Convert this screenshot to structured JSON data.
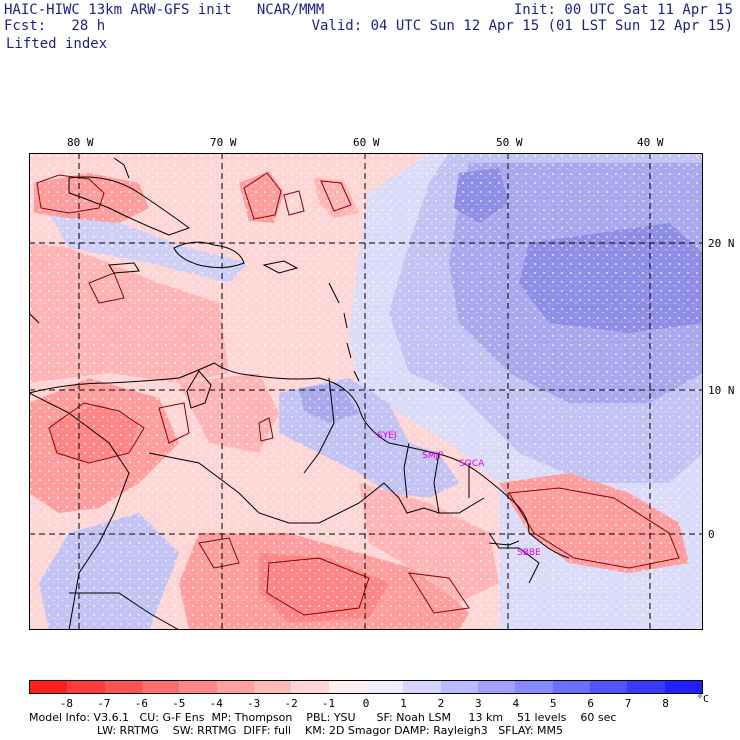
{
  "header": {
    "title": "HAIC-HIWC 13km ARW-GFS init   NCAR/MMM",
    "fcst": "Fcst:   28 h",
    "variable": "Lifted index",
    "init": "Init: 00 UTC Sat 11 Apr 15",
    "valid": "Valid: 04 UTC Sun 12 Apr 15 (01 LST Sun 12 Apr 15)"
  },
  "map": {
    "lon_labels": [
      "80 W",
      "70 W",
      "60 W",
      "50 W",
      "40 W"
    ],
    "lat_labels": [
      "20 N",
      "10 N",
      "0"
    ],
    "stations": [
      "SYEJ",
      "SMJP",
      "SOCA",
      "SBBE"
    ],
    "grid_line_color": "#000000",
    "coast_color": "#000000",
    "contour_color": "#8b0000"
  },
  "colorbar": {
    "labels": [
      "-8",
      "-7",
      "-6",
      "-5",
      "-4",
      "-3",
      "-2",
      "-1",
      "0",
      "1",
      "2",
      "3",
      "4",
      "5",
      "6",
      "7",
      "8"
    ],
    "unit": "°C",
    "colors": [
      "#ff1f1f",
      "#ff3a3a",
      "#ff5353",
      "#ff6d6d",
      "#ff8787",
      "#ffa0a0",
      "#ffbaba",
      "#ffd4d4",
      "#ffeeee",
      "#eeeeff",
      "#d4d4ff",
      "#babaff",
      "#a0a0ff",
      "#8787ff",
      "#6d6dff",
      "#5353ff",
      "#3a3aff",
      "#1f1fff"
    ]
  },
  "model_info": {
    "line1": "Model Info: V3.6.1   CU: G-F Ens  MP: Thompson    PBL: YSU      SF: Noah LSM     13 km    51 levels    60 sec",
    "line2": "LW: RRTMG    SW: RRTMG  DIFF: full    KM: 2D Smagor DAMP: Rayleigh3   SFLAY: MM5"
  }
}
